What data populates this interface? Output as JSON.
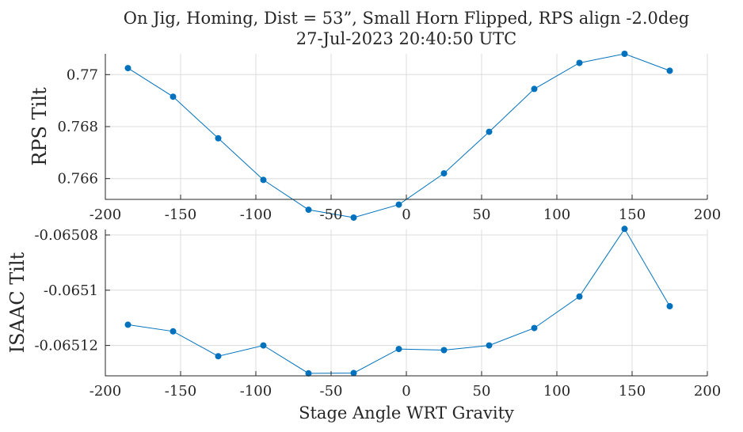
{
  "figure": {
    "title_line1": "On Jig, Homing, Dist = 53”, Small Horn Flipped, RPS align -2.0deg",
    "title_line2": "27-Jul-2023 20:40:50 UTC",
    "xlabel": "Stage Angle WRT Gravity"
  },
  "chart_data": [
    {
      "type": "line",
      "ylabel": "RPS Tilt",
      "xlim": [
        -200,
        200
      ],
      "ylim": [
        0.7652,
        0.7708
      ],
      "xticks": [
        -200,
        -150,
        -100,
        -50,
        0,
        50,
        100,
        150,
        200
      ],
      "yticks": [
        0.766,
        0.768,
        0.77
      ],
      "ytick_labels": [
        "0.766",
        "0.768",
        "0.77"
      ],
      "grid": true,
      "color": "#0072BD",
      "x": [
        -185,
        -155,
        -125,
        -95,
        -65,
        -35,
        -5,
        25,
        55,
        85,
        115,
        145,
        175
      ],
      "y": [
        0.77025,
        0.76915,
        0.76755,
        0.76595,
        0.7648,
        0.7645,
        0.765,
        0.7662,
        0.7678,
        0.76945,
        0.77045,
        0.7708,
        0.77015
      ]
    },
    {
      "type": "line",
      "ylabel": "ISAAC Tilt",
      "xlim": [
        -200,
        200
      ],
      "ylim": [
        -0.065131,
        -0.065078
      ],
      "xticks": [
        -200,
        -150,
        -100,
        -50,
        0,
        50,
        100,
        150,
        200
      ],
      "yticks": [
        -0.06512,
        -0.0651,
        -0.06508
      ],
      "ytick_labels": [
        "-0.06512",
        "-0.0651",
        "-0.06508"
      ],
      "grid": true,
      "color": "#0072BD",
      "x": [
        -185,
        -155,
        -125,
        -95,
        -65,
        -35,
        -5,
        25,
        55,
        85,
        115,
        145,
        175
      ],
      "y": [
        -0.0651125,
        -0.0651149,
        -0.0651239,
        -0.06512,
        -0.0651301,
        -0.06513,
        -0.0651213,
        -0.0651217,
        -0.06512,
        -0.0651137,
        -0.0651023,
        -0.0650778,
        -0.0651058
      ]
    }
  ]
}
